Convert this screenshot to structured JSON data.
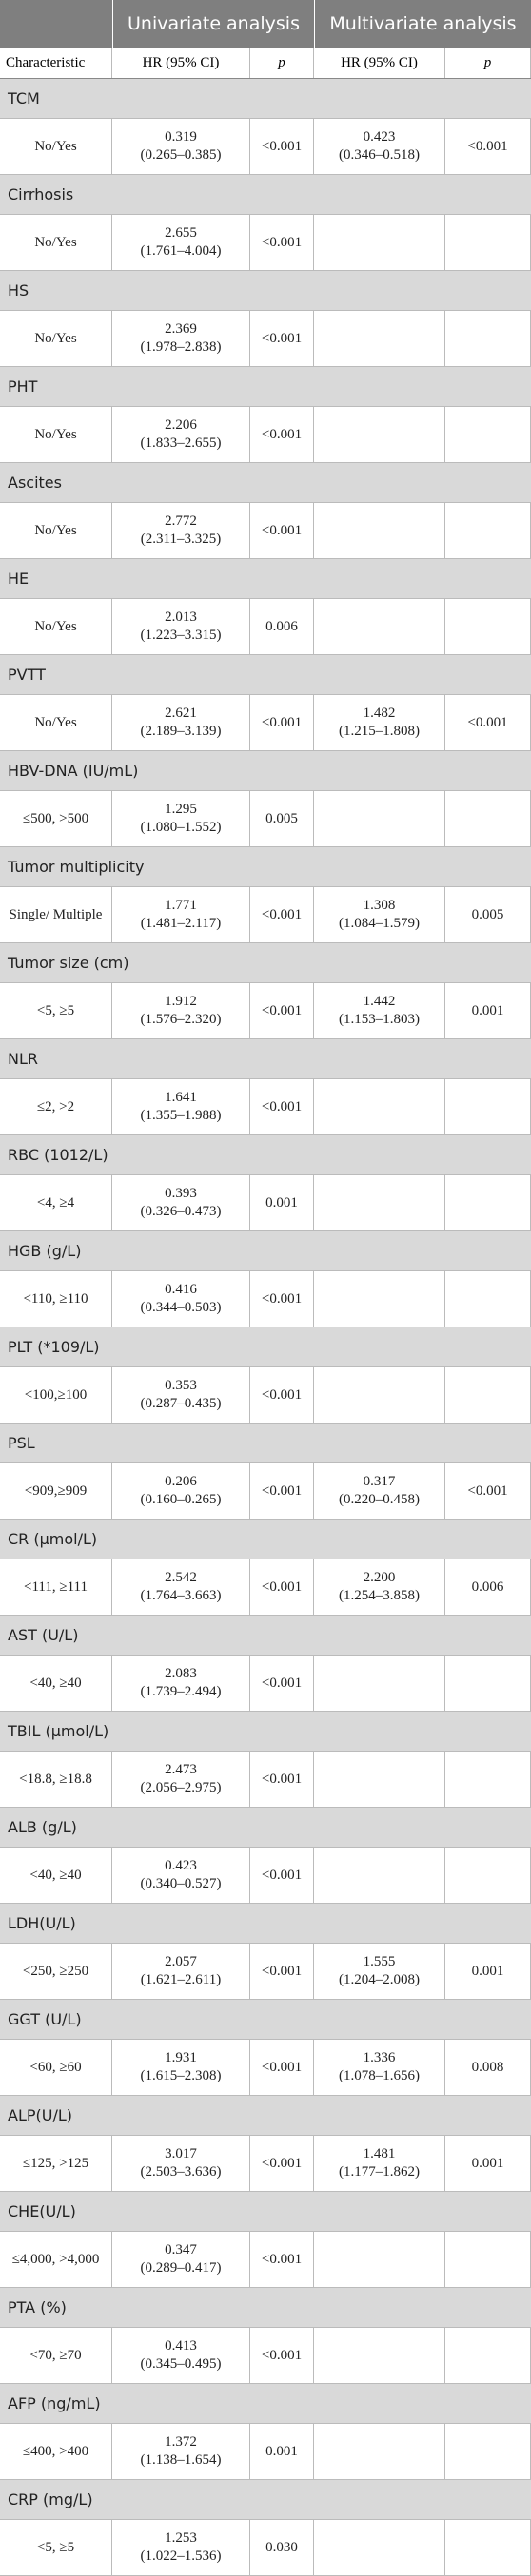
{
  "header": {
    "univariate": "Univariate analysis",
    "multivariate": "Multivariate analysis",
    "columns": [
      "Characteristic",
      "HR (95% CI)",
      "p",
      "HR (95% CI)",
      "p"
    ]
  },
  "groups": [
    {
      "name": "TCM",
      "label": "No/Yes",
      "uni": [
        "0.319",
        "(0.265–0.385)",
        "<0.001"
      ],
      "multi": [
        "0.423",
        "(0.346–0.518)",
        "<0.001"
      ]
    },
    {
      "name": "Cirrhosis",
      "label": "No/Yes",
      "uni": [
        "2.655",
        "(1.761–4.004)",
        "<0.001"
      ]
    },
    {
      "name": "HS",
      "label": "No/Yes",
      "uni": [
        "2.369",
        "(1.978–2.838)",
        "<0.001"
      ]
    },
    {
      "name": "PHT",
      "label": "No/Yes",
      "uni": [
        "2.206",
        "(1.833–2.655)",
        "<0.001"
      ]
    },
    {
      "name": "Ascites",
      "label": "No/Yes",
      "uni": [
        "2.772",
        "(2.311–3.325)",
        "<0.001"
      ]
    },
    {
      "name": "HE",
      "label": "No/Yes",
      "uni": [
        "2.013",
        "(1.223–3.315)",
        "0.006"
      ]
    },
    {
      "name": "PVTT",
      "label": "No/Yes",
      "uni": [
        "2.621",
        "(2.189–3.139)",
        "<0.001"
      ],
      "multi": [
        "1.482",
        "(1.215–1.808)",
        "<0.001"
      ]
    },
    {
      "name": "HBV-DNA (IU/mL)",
      "label": "≤500, >500",
      "uni": [
        "1.295",
        "(1.080–1.552)",
        "0.005"
      ]
    },
    {
      "name": "Tumor multiplicity",
      "label": "Single/ Multiple",
      "uni": [
        "1.771",
        "(1.481–2.117)",
        "<0.001"
      ],
      "multi": [
        "1.308",
        "(1.084–1.579)",
        "0.005"
      ]
    },
    {
      "name": "Tumor size (cm)",
      "label": "<5, ≥5",
      "uni": [
        "1.912",
        "(1.576–2.320)",
        "<0.001"
      ],
      "multi": [
        "1.442",
        "(1.153–1.803)",
        "0.001"
      ]
    },
    {
      "name": "NLR",
      "label": "≤2, >2",
      "uni": [
        "1.641",
        "(1.355–1.988)",
        "<0.001"
      ]
    },
    {
      "name": "RBC (1012/L)",
      "label": "<4, ≥4",
      "uni": [
        "0.393",
        "(0.326–0.473)",
        "0.001"
      ]
    },
    {
      "name": "HGB (g/L)",
      "label": "<110, ≥110",
      "uni": [
        "0.416",
        "(0.344–0.503)",
        "<0.001"
      ]
    },
    {
      "name": "PLT (*109/L)",
      "label": "<100,≥100",
      "uni": [
        "0.353",
        "(0.287–0.435)",
        "<0.001"
      ]
    },
    {
      "name": "PSL",
      "label": "<909,≥909",
      "uni": [
        "0.206",
        "(0.160–0.265)",
        "<0.001"
      ],
      "multi": [
        "0.317",
        "(0.220–0.458)",
        "<0.001"
      ]
    },
    {
      "name": "CR (μmol/L)",
      "label": "<111, ≥111",
      "uni": [
        "2.542",
        "(1.764–3.663)",
        "<0.001"
      ],
      "multi": [
        "2.200",
        "(1.254–3.858)",
        "0.006"
      ]
    },
    {
      "name": "AST (U/L)",
      "label": "<40, ≥40",
      "uni": [
        "2.083",
        "(1.739–2.494)",
        "<0.001"
      ]
    },
    {
      "name": "TBIL (μmol/L)",
      "label": "<18.8, ≥18.8",
      "uni": [
        "2.473",
        "(2.056–2.975)",
        "<0.001"
      ]
    },
    {
      "name": "ALB (g/L)",
      "label": "<40, ≥40",
      "uni": [
        "0.423",
        "(0.340–0.527)",
        "<0.001"
      ]
    },
    {
      "name": "LDH(U/L)",
      "label": "<250, ≥250",
      "uni": [
        "2.057",
        "(1.621–2.611)",
        "<0.001"
      ],
      "multi": [
        "1.555",
        "(1.204–2.008)",
        "0.001"
      ]
    },
    {
      "name": "GGT (U/L)",
      "label": "<60, ≥60",
      "uni": [
        "1.931",
        "(1.615–2.308)",
        "<0.001"
      ],
      "multi": [
        "1.336",
        "(1.078–1.656)",
        "0.008"
      ]
    },
    {
      "name": "ALP(U/L)",
      "label": "≤125, >125",
      "uni": [
        "3.017",
        "(2.503–3.636)",
        "<0.001"
      ],
      "multi": [
        "1.481",
        "(1.177–1.862)",
        "0.001"
      ]
    },
    {
      "name": "CHE(U/L)",
      "label": "≤4,000, >4,000",
      "uni": [
        "0.347",
        "(0.289–0.417)",
        "<0.001"
      ]
    },
    {
      "name": "PTA (%)",
      "label": "<70, ≥70",
      "uni": [
        "0.413",
        "(0.345–0.495)",
        "<0.001"
      ]
    },
    {
      "name": "AFP (ng/mL)",
      "label": "≤400, >400",
      "uni": [
        "1.372",
        "(1.138–1.654)",
        "0.001"
      ]
    },
    {
      "name": "CRP (mg/L)",
      "label": "<5, ≥5",
      "uni": [
        "1.253",
        "(1.022–1.536)",
        "0.030"
      ]
    }
  ]
}
